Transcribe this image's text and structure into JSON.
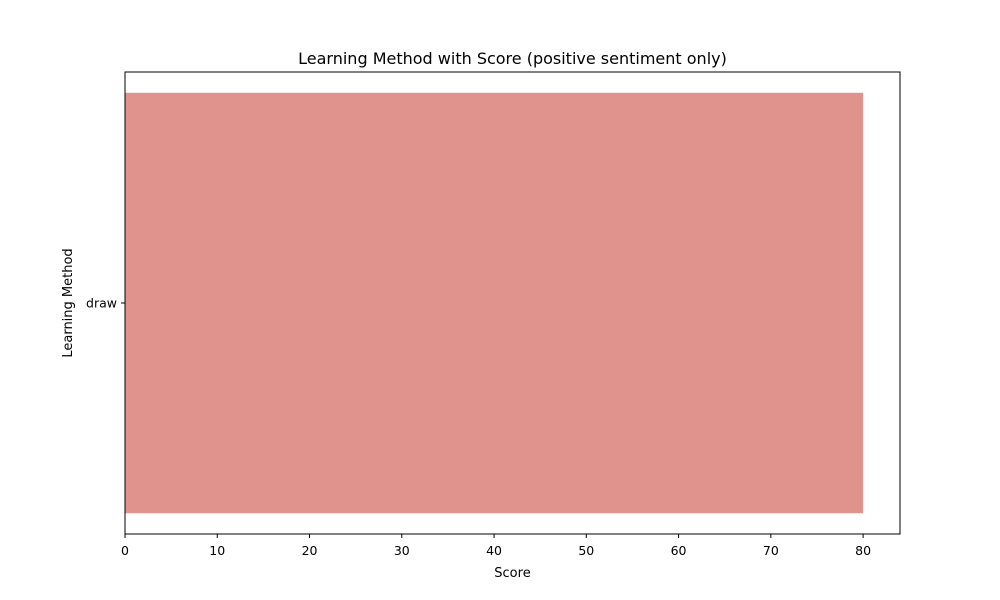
{
  "chart_data": {
    "type": "bar",
    "orientation": "horizontal",
    "title": "Learning Method with Score (positive sentiment only)",
    "xlabel": "Score",
    "ylabel": "Learning Method",
    "categories": [
      "draw"
    ],
    "values": [
      80
    ],
    "xlim": [
      0,
      84
    ],
    "xticks": [
      0,
      10,
      20,
      30,
      40,
      50,
      60,
      70,
      80
    ],
    "grid": false,
    "bar_color": "#e0928c"
  }
}
